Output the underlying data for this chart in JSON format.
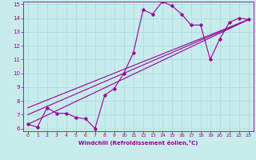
{
  "xlabel": "Windchill (Refroidissement éolien,°C)",
  "bg_color": "#c8ecec",
  "line_color": "#990099",
  "grid_color": "#aadddd",
  "xlim": [
    -0.5,
    23.5
  ],
  "ylim": [
    5.8,
    15.2
  ],
  "xticks": [
    0,
    1,
    2,
    3,
    4,
    5,
    6,
    7,
    8,
    9,
    10,
    11,
    12,
    13,
    14,
    15,
    16,
    17,
    18,
    19,
    20,
    21,
    22,
    23
  ],
  "yticks": [
    6,
    7,
    8,
    9,
    10,
    11,
    12,
    13,
    14,
    15
  ],
  "data_x": [
    0,
    1,
    2,
    3,
    4,
    5,
    6,
    7,
    8,
    9,
    10,
    11,
    12,
    13,
    14,
    15,
    16,
    17,
    18,
    19,
    20,
    21,
    22,
    23
  ],
  "data_y": [
    6.3,
    6.1,
    7.5,
    7.1,
    7.1,
    6.8,
    6.7,
    6.0,
    8.4,
    8.9,
    10.0,
    11.5,
    14.6,
    14.3,
    15.2,
    14.9,
    14.3,
    13.5,
    13.5,
    11.0,
    12.5,
    13.7,
    14.0,
    13.9
  ],
  "line1_x": [
    0,
    23
  ],
  "line1_y": [
    6.3,
    13.9
  ],
  "line2_x": [
    0,
    23
  ],
  "line2_y": [
    7.0,
    13.9
  ],
  "line3_x": [
    0,
    23
  ],
  "line3_y": [
    7.5,
    13.9
  ]
}
